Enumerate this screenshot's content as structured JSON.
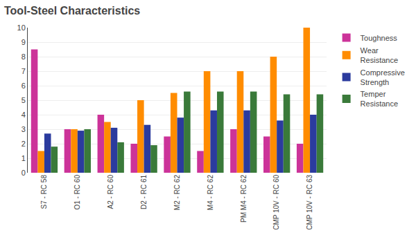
{
  "chart_data": {
    "type": "bar",
    "title": "Tool-Steel Characteristics",
    "categories": [
      "S7 - RC 58",
      "O1 - RC 60",
      "A2 - RC 60",
      "D2 - RC 61",
      "M2 - RC 62",
      "M4 - RC 62",
      "PM M4 - RC 62",
      "CMP 10V - RC 60",
      "CMP 10V - RC 63"
    ],
    "series": [
      {
        "name": "Toughness",
        "color": "#CC3399",
        "values": [
          8.5,
          3.0,
          4.0,
          2.0,
          2.5,
          1.5,
          3.0,
          2.5,
          2.0
        ]
      },
      {
        "name": "Wear\nResistance",
        "color": "#FF8C00",
        "values": [
          1.5,
          3.0,
          3.5,
          5.0,
          5.5,
          7.0,
          7.0,
          8.0,
          10.0
        ]
      },
      {
        "name": "Compressive\nStrength",
        "color": "#2B3B9E",
        "values": [
          2.7,
          2.9,
          3.1,
          3.3,
          3.8,
          4.3,
          4.3,
          3.6,
          4.0
        ]
      },
      {
        "name": "Temper\nResistance",
        "color": "#3A7A3A",
        "values": [
          1.8,
          3.0,
          2.1,
          1.9,
          5.6,
          5.6,
          5.6,
          5.4,
          5.4
        ]
      }
    ],
    "ylim": [
      0,
      10
    ],
    "yticks": [
      0,
      1,
      2,
      3,
      4,
      5,
      6,
      7,
      8,
      9,
      10
    ],
    "grid": true,
    "legend": "right"
  }
}
